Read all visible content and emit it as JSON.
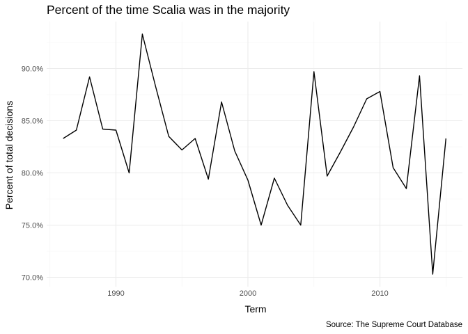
{
  "chart_data": {
    "type": "line",
    "title": "Percent of the time Scalia was in the majority",
    "xlabel": "Term",
    "ylabel": "Percent of total decisions",
    "caption": "Source: The Supreme Court Database",
    "xlim": [
      1984.75,
      2016.25
    ],
    "ylim": [
      69.1,
      94.5
    ],
    "x_ticks": [
      1990,
      2000,
      2010
    ],
    "x_minor_ticks": [
      1985,
      1995,
      2005,
      2015
    ],
    "y_ticks": [
      70,
      75,
      80,
      85,
      90
    ],
    "y_tick_labels": [
      "70.0%",
      "75.0%",
      "80.0%",
      "85.0%",
      "90.0%"
    ],
    "y_minor_ticks": [
      72.5,
      77.5,
      82.5,
      87.5,
      92.5
    ],
    "grid": true,
    "legend": "none",
    "series": [
      {
        "color": "#000000",
        "x": [
          1986,
          1987,
          1988,
          1989,
          1990,
          1991,
          1992,
          1993,
          1994,
          1995,
          1996,
          1997,
          1998,
          1999,
          2000,
          2001,
          2002,
          2003,
          2004,
          2005,
          2006,
          2007,
          2008,
          2009,
          2010,
          2011,
          2012,
          2013,
          2014,
          2015
        ],
        "y": [
          83.3,
          84.1,
          89.2,
          84.2,
          84.1,
          80.0,
          93.3,
          88.3,
          83.5,
          82.2,
          83.3,
          79.4,
          86.8,
          82.1,
          79.3,
          75.0,
          79.5,
          76.9,
          75.0,
          89.7,
          79.7,
          82.0,
          84.4,
          87.1,
          87.8,
          80.5,
          78.5,
          89.3,
          70.3,
          83.3
        ]
      }
    ]
  }
}
